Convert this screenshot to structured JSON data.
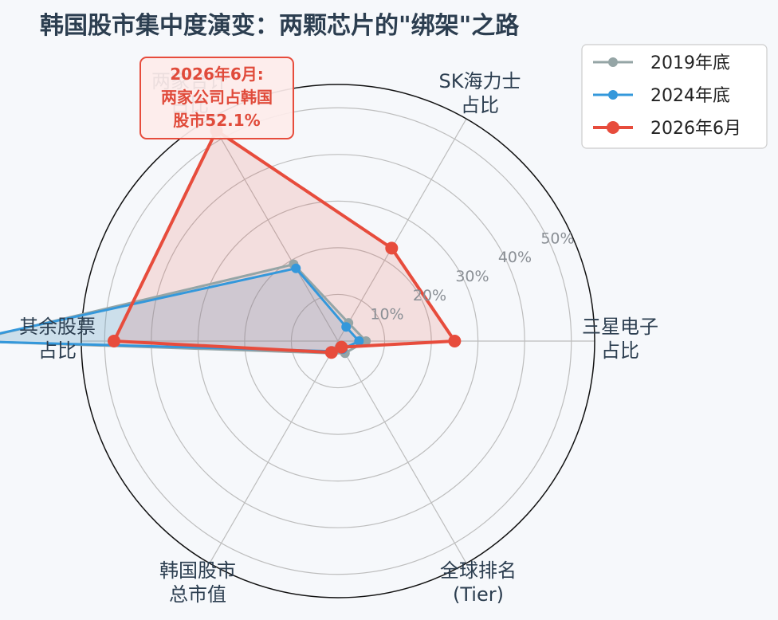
{
  "chart_data": {
    "type": "radar",
    "title": "韩国股市集中度演变：两颗芯片的\"绑架\"之路",
    "axes": [
      [
        "三星电子",
        "占比"
      ],
      [
        "SK海力士",
        "占比"
      ],
      [
        "两家合计",
        "占比"
      ],
      [
        "其余股票",
        "占比"
      ],
      [
        "韩国股市",
        "总市值"
      ],
      [
        "全球排名",
        "(Tier)"
      ]
    ],
    "axis_angles_deg": [
      0,
      60,
      120,
      180,
      240,
      300
    ],
    "rlim": [
      0,
      55
    ],
    "r_ticks": [
      10,
      20,
      30,
      40,
      50
    ],
    "r_tick_labels": [
      "10%",
      "20%",
      "30%",
      "40%",
      "50%"
    ],
    "series": [
      {
        "name": "2019年底",
        "color": "#95a5a6",
        "values": [
          6,
          4.5,
          19,
          79,
          3,
          3
        ]
      },
      {
        "name": "2024年底",
        "color": "#3498db",
        "values": [
          4.5,
          3.5,
          18,
          80,
          2.5,
          2
        ]
      },
      {
        "name": "2026年6月",
        "color": "#e74c3c",
        "values": [
          25,
          23,
          52.1,
          48,
          2.8,
          1.5
        ]
      }
    ],
    "annotation": {
      "lines": [
        "2026年6月:",
        "两家公司占韩国",
        "股市52.1%"
      ]
    },
    "legend_position": "top-right",
    "grid": true
  }
}
